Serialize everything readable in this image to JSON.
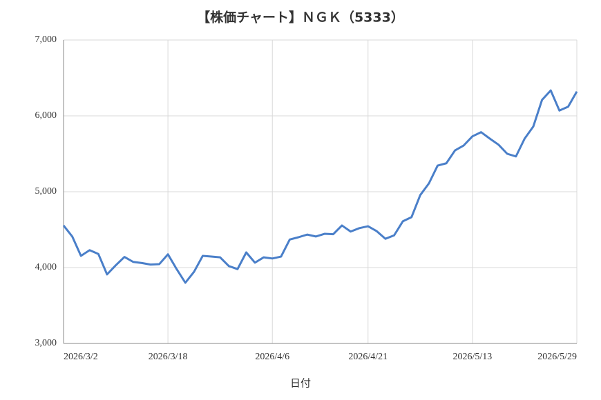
{
  "chart_data": {
    "type": "line",
    "title": "【株価チャート】ＮＧＫ（5333）",
    "x_label": "日付",
    "categories": [
      "2026/3/2",
      null,
      null,
      null,
      null,
      null,
      null,
      null,
      null,
      null,
      null,
      null,
      "2026/3/18",
      null,
      null,
      null,
      null,
      null,
      null,
      null,
      null,
      null,
      null,
      null,
      "2026/4/6",
      null,
      null,
      null,
      null,
      null,
      null,
      null,
      null,
      null,
      null,
      "2026/4/21",
      null,
      null,
      null,
      null,
      null,
      null,
      null,
      null,
      null,
      null,
      null,
      "2026/5/13",
      null,
      null,
      null,
      null,
      null,
      null,
      null,
      null,
      null,
      null,
      null,
      "2026/5/29"
    ],
    "values": [
      4555,
      4410,
      4155,
      4230,
      4180,
      3910,
      4030,
      4140,
      4075,
      4060,
      4040,
      4045,
      4175,
      3980,
      3800,
      3945,
      4155,
      4145,
      4135,
      4020,
      3980,
      4200,
      4065,
      4135,
      4120,
      4145,
      4370,
      4400,
      4435,
      4410,
      4445,
      4440,
      4555,
      4475,
      4520,
      4545,
      4480,
      4380,
      4425,
      4610,
      4665,
      4955,
      5110,
      5345,
      5375,
      5545,
      5610,
      5730,
      5785,
      5700,
      5620,
      5500,
      5465,
      5700,
      5860,
      6210,
      6335,
      6070,
      6120,
      6320
    ],
    "color": "#4a7fc9",
    "ylim": [
      3000,
      7000
    ],
    "yticks": [
      {
        "value": 3000,
        "label": "3,000"
      },
      {
        "value": 4000,
        "label": "4,000"
      },
      {
        "value": 5000,
        "label": "5,000"
      },
      {
        "value": 6000,
        "label": "6,000"
      },
      {
        "value": 7000,
        "label": "7,000"
      }
    ],
    "grid": true
  }
}
